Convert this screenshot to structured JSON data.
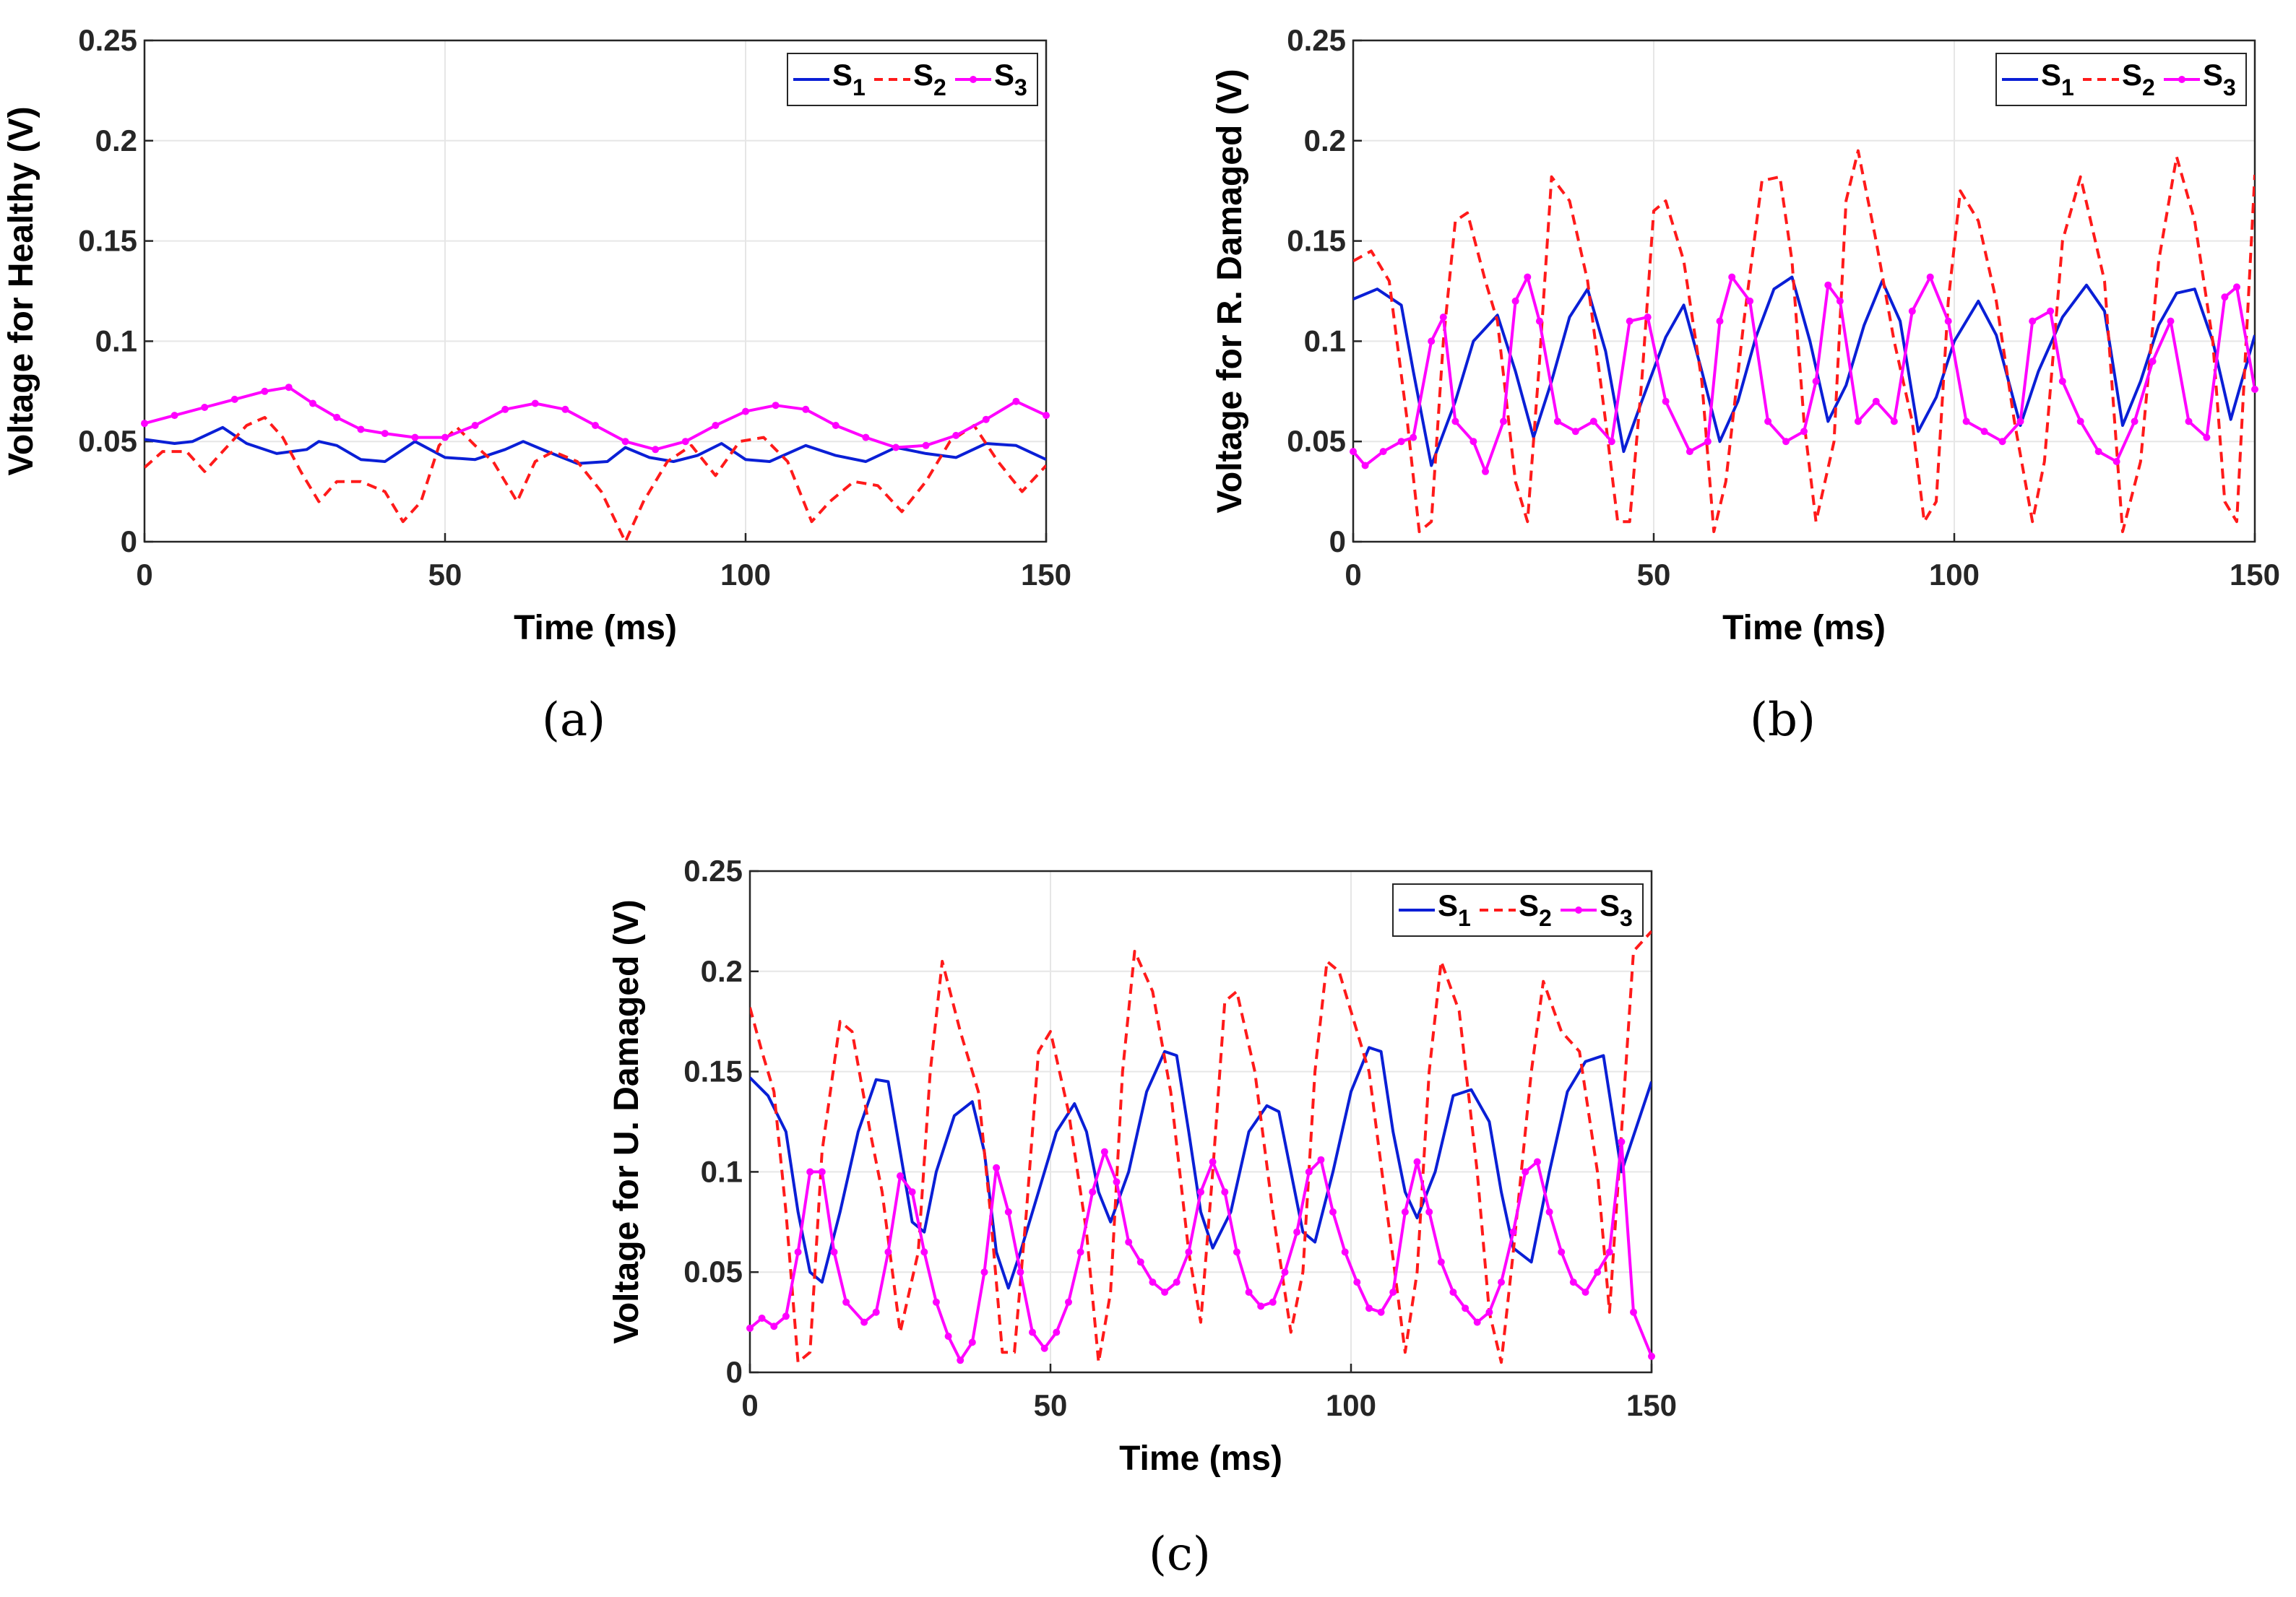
{
  "figure": {
    "captions": [
      "(a)",
      "(b)",
      "(c)"
    ]
  },
  "colors": {
    "s1": "#0a1fd6",
    "s2": "#ff1a1a",
    "s3": "#ff00ff"
  },
  "chart_data": [
    {
      "type": "line",
      "xlabel": "Time (ms)",
      "ylabel": "Voltage for Healthy (V)",
      "xlim": [
        0,
        150
      ],
      "ylim": [
        0,
        0.25
      ],
      "xticks": [
        0,
        50,
        100,
        150
      ],
      "yticks": [
        0,
        0.05,
        0.1,
        0.15,
        0.2,
        0.25
      ],
      "ytick_labels": [
        "0",
        "0.05",
        "0.1",
        "0.15",
        "0.2",
        "0.25"
      ],
      "grid": true,
      "legend": [
        "S1",
        "S2",
        "S3"
      ],
      "legend_position": "top-right",
      "caption": "(a)",
      "series": [
        {
          "name": "S1",
          "style": "solid",
          "x": [
            0,
            5,
            8,
            13,
            17,
            22,
            27,
            29,
            32,
            36,
            40,
            45,
            50,
            55,
            60,
            63,
            67,
            72,
            77,
            80,
            84,
            88,
            92,
            96,
            100,
            104,
            110,
            115,
            120,
            125,
            130,
            135,
            140,
            145,
            150
          ],
          "values": [
            0.051,
            0.049,
            0.05,
            0.057,
            0.049,
            0.044,
            0.046,
            0.05,
            0.048,
            0.041,
            0.04,
            0.05,
            0.042,
            0.041,
            0.046,
            0.05,
            0.045,
            0.039,
            0.04,
            0.047,
            0.042,
            0.04,
            0.043,
            0.049,
            0.041,
            0.04,
            0.048,
            0.043,
            0.04,
            0.047,
            0.044,
            0.042,
            0.049,
            0.048,
            0.041
          ]
        },
        {
          "name": "S2",
          "style": "dashed",
          "x": [
            0,
            3,
            7,
            10,
            13,
            17,
            20,
            23,
            26,
            29,
            32,
            36,
            40,
            43,
            46,
            49,
            52,
            55,
            58,
            62,
            65,
            68,
            72,
            76,
            80,
            83,
            87,
            91,
            95,
            99,
            103,
            107,
            111,
            114,
            118,
            122,
            126,
            130,
            134,
            138,
            142,
            146,
            150
          ],
          "values": [
            0.037,
            0.045,
            0.045,
            0.035,
            0.045,
            0.058,
            0.062,
            0.052,
            0.035,
            0.02,
            0.03,
            0.03,
            0.025,
            0.01,
            0.02,
            0.048,
            0.057,
            0.048,
            0.04,
            0.02,
            0.04,
            0.045,
            0.04,
            0.025,
            0.0,
            0.02,
            0.04,
            0.048,
            0.033,
            0.05,
            0.052,
            0.04,
            0.01,
            0.02,
            0.03,
            0.028,
            0.015,
            0.03,
            0.05,
            0.058,
            0.04,
            0.025,
            0.038
          ]
        },
        {
          "name": "S3",
          "style": "marker-line",
          "x": [
            0,
            5,
            10,
            15,
            20,
            24,
            28,
            32,
            36,
            40,
            45,
            50,
            55,
            60,
            65,
            70,
            75,
            80,
            85,
            90,
            95,
            100,
            105,
            110,
            115,
            120,
            125,
            130,
            135,
            140,
            145,
            150
          ],
          "values": [
            0.059,
            0.063,
            0.067,
            0.071,
            0.075,
            0.077,
            0.069,
            0.062,
            0.056,
            0.054,
            0.052,
            0.052,
            0.058,
            0.066,
            0.069,
            0.066,
            0.058,
            0.05,
            0.046,
            0.05,
            0.058,
            0.065,
            0.068,
            0.066,
            0.058,
            0.052,
            0.047,
            0.048,
            0.053,
            0.061,
            0.07,
            0.063
          ]
        }
      ]
    },
    {
      "type": "line",
      "xlabel": "Time (ms)",
      "ylabel": "Voltage for R. Damaged (V)",
      "xlim": [
        0,
        150
      ],
      "ylim": [
        0,
        0.25
      ],
      "xticks": [
        0,
        50,
        100,
        150
      ],
      "yticks": [
        0,
        0.05,
        0.1,
        0.15,
        0.2,
        0.25
      ],
      "ytick_labels": [
        "0",
        "0.05",
        "0.1",
        "0.15",
        "0.2",
        "0.25"
      ],
      "grid": true,
      "legend": [
        "S1",
        "S2",
        "S3"
      ],
      "legend_position": "top-right",
      "caption": "(b)",
      "series": [
        {
          "name": "S1",
          "style": "solid",
          "x": [
            0,
            4,
            8,
            10,
            13,
            17,
            20,
            24,
            27,
            30,
            33,
            36,
            39,
            42,
            45,
            48,
            52,
            55,
            58,
            61,
            64,
            67,
            70,
            73,
            76,
            79,
            82,
            85,
            88,
            91,
            94,
            97,
            100,
            104,
            107,
            111,
            114,
            118,
            122,
            125,
            128,
            131,
            134,
            137,
            140,
            143,
            146,
            150
          ],
          "values": [
            0.121,
            0.126,
            0.118,
            0.085,
            0.038,
            0.07,
            0.1,
            0.113,
            0.085,
            0.052,
            0.08,
            0.112,
            0.126,
            0.095,
            0.045,
            0.07,
            0.102,
            0.118,
            0.085,
            0.05,
            0.07,
            0.102,
            0.126,
            0.132,
            0.1,
            0.06,
            0.078,
            0.108,
            0.13,
            0.11,
            0.055,
            0.072,
            0.1,
            0.12,
            0.103,
            0.058,
            0.085,
            0.112,
            0.128,
            0.115,
            0.058,
            0.08,
            0.108,
            0.124,
            0.126,
            0.1,
            0.061,
            0.103
          ]
        },
        {
          "name": "S2",
          "style": "dashed",
          "x": [
            0,
            3,
            6,
            9,
            11,
            13,
            15,
            17,
            19,
            22,
            24,
            27,
            29,
            31,
            33,
            36,
            39,
            42,
            44,
            46,
            48,
            50,
            52,
            55,
            58,
            60,
            62,
            65,
            68,
            71,
            73,
            75,
            77,
            80,
            82,
            84,
            87,
            90,
            93,
            95,
            97,
            99,
            101,
            104,
            107,
            110,
            113,
            115,
            118,
            121,
            125,
            128,
            131,
            134,
            137,
            140,
            143,
            145,
            147,
            150
          ],
          "values": [
            0.14,
            0.145,
            0.13,
            0.06,
            0.005,
            0.01,
            0.1,
            0.16,
            0.164,
            0.13,
            0.11,
            0.03,
            0.01,
            0.09,
            0.182,
            0.17,
            0.13,
            0.06,
            0.01,
            0.01,
            0.08,
            0.165,
            0.17,
            0.14,
            0.08,
            0.005,
            0.03,
            0.11,
            0.18,
            0.182,
            0.14,
            0.06,
            0.01,
            0.05,
            0.17,
            0.195,
            0.15,
            0.1,
            0.06,
            0.01,
            0.02,
            0.12,
            0.175,
            0.16,
            0.12,
            0.06,
            0.01,
            0.04,
            0.15,
            0.182,
            0.13,
            0.005,
            0.04,
            0.14,
            0.192,
            0.16,
            0.1,
            0.02,
            0.01,
            0.183
          ]
        },
        {
          "name": "S3",
          "style": "marker-line",
          "x": [
            0,
            2,
            5,
            8,
            10,
            13,
            15,
            17,
            20,
            22,
            25,
            27,
            29,
            31,
            34,
            37,
            40,
            43,
            46,
            49,
            52,
            56,
            59,
            61,
            63,
            66,
            69,
            72,
            75,
            77,
            79,
            81,
            84,
            87,
            90,
            93,
            96,
            99,
            102,
            105,
            108,
            111,
            113,
            116,
            118,
            121,
            124,
            127,
            130,
            133,
            136,
            139,
            142,
            145,
            147,
            150
          ],
          "values": [
            0.045,
            0.038,
            0.045,
            0.05,
            0.052,
            0.1,
            0.112,
            0.06,
            0.05,
            0.035,
            0.06,
            0.12,
            0.132,
            0.11,
            0.06,
            0.055,
            0.06,
            0.05,
            0.11,
            0.112,
            0.07,
            0.045,
            0.05,
            0.11,
            0.132,
            0.12,
            0.06,
            0.05,
            0.055,
            0.08,
            0.128,
            0.12,
            0.06,
            0.07,
            0.06,
            0.115,
            0.132,
            0.11,
            0.06,
            0.055,
            0.05,
            0.06,
            0.11,
            0.115,
            0.08,
            0.06,
            0.045,
            0.04,
            0.06,
            0.09,
            0.11,
            0.06,
            0.052,
            0.122,
            0.127,
            0.076
          ]
        }
      ]
    },
    {
      "type": "line",
      "xlabel": "Time (ms)",
      "ylabel": "Voltage for U. Damaged (V)",
      "xlim": [
        0,
        150
      ],
      "ylim": [
        0,
        0.25
      ],
      "xticks": [
        0,
        50,
        100,
        150
      ],
      "yticks": [
        0,
        0.05,
        0.1,
        0.15,
        0.2,
        0.25
      ],
      "ytick_labels": [
        "0",
        "0.05",
        "0.1",
        "0.15",
        "0.2",
        "0.25"
      ],
      "grid": true,
      "legend": [
        "S1",
        "S2",
        "S3"
      ],
      "legend_position": "top-right",
      "caption": "(c)",
      "series": [
        {
          "name": "S1",
          "style": "solid",
          "x": [
            0,
            3,
            6,
            8,
            10,
            12,
            15,
            18,
            21,
            23,
            25,
            27,
            29,
            31,
            34,
            37,
            39,
            41,
            43,
            45,
            48,
            51,
            54,
            56,
            58,
            60,
            63,
            66,
            69,
            71,
            73,
            75,
            77,
            80,
            83,
            86,
            88,
            90,
            92,
            94,
            97,
            100,
            103,
            105,
            107,
            109,
            111,
            114,
            117,
            120,
            123,
            125,
            127,
            130,
            133,
            136,
            139,
            142,
            145,
            150
          ],
          "values": [
            0.147,
            0.138,
            0.12,
            0.08,
            0.05,
            0.045,
            0.08,
            0.12,
            0.146,
            0.145,
            0.11,
            0.075,
            0.07,
            0.1,
            0.128,
            0.135,
            0.11,
            0.06,
            0.042,
            0.06,
            0.09,
            0.12,
            0.134,
            0.12,
            0.09,
            0.075,
            0.1,
            0.14,
            0.16,
            0.158,
            0.12,
            0.08,
            0.062,
            0.08,
            0.12,
            0.133,
            0.13,
            0.1,
            0.07,
            0.065,
            0.1,
            0.14,
            0.162,
            0.16,
            0.12,
            0.09,
            0.077,
            0.1,
            0.138,
            0.141,
            0.125,
            0.09,
            0.062,
            0.055,
            0.1,
            0.14,
            0.155,
            0.158,
            0.1,
            0.145
          ]
        },
        {
          "name": "S2",
          "style": "dashed",
          "x": [
            0,
            2,
            4,
            6,
            8,
            10,
            12,
            15,
            17,
            20,
            22,
            25,
            28,
            30,
            32,
            35,
            38,
            40,
            42,
            44,
            46,
            48,
            50,
            53,
            56,
            58,
            60,
            62,
            64,
            67,
            70,
            73,
            75,
            77,
            79,
            81,
            84,
            87,
            90,
            92,
            94,
            96,
            98,
            100,
            103,
            106,
            109,
            111,
            113,
            115,
            118,
            121,
            123,
            125,
            127,
            130,
            132,
            135,
            138,
            141,
            143,
            145,
            147,
            150
          ],
          "values": [
            0.182,
            0.16,
            0.14,
            0.08,
            0.005,
            0.01,
            0.11,
            0.175,
            0.17,
            0.12,
            0.09,
            0.02,
            0.06,
            0.15,
            0.205,
            0.17,
            0.14,
            0.08,
            0.01,
            0.01,
            0.08,
            0.16,
            0.17,
            0.13,
            0.07,
            0.005,
            0.04,
            0.15,
            0.21,
            0.19,
            0.14,
            0.06,
            0.025,
            0.1,
            0.185,
            0.19,
            0.15,
            0.08,
            0.02,
            0.05,
            0.15,
            0.205,
            0.2,
            0.18,
            0.15,
            0.08,
            0.01,
            0.05,
            0.15,
            0.205,
            0.18,
            0.1,
            0.03,
            0.005,
            0.06,
            0.15,
            0.195,
            0.17,
            0.16,
            0.1,
            0.03,
            0.12,
            0.21,
            0.22
          ]
        },
        {
          "name": "S3",
          "style": "marker-line",
          "x": [
            0,
            2,
            4,
            6,
            8,
            10,
            12,
            14,
            16,
            19,
            21,
            23,
            25,
            27,
            29,
            31,
            33,
            35,
            37,
            39,
            41,
            43,
            45,
            47,
            49,
            51,
            53,
            55,
            57,
            59,
            61,
            63,
            65,
            67,
            69,
            71,
            73,
            75,
            77,
            79,
            81,
            83,
            85,
            87,
            89,
            91,
            93,
            95,
            97,
            99,
            101,
            103,
            105,
            107,
            109,
            111,
            113,
            115,
            117,
            119,
            121,
            123,
            125,
            127,
            129,
            131,
            133,
            135,
            137,
            139,
            141,
            143,
            145,
            147,
            150
          ],
          "values": [
            0.022,
            0.027,
            0.023,
            0.028,
            0.06,
            0.1,
            0.1,
            0.06,
            0.035,
            0.025,
            0.03,
            0.06,
            0.098,
            0.09,
            0.06,
            0.035,
            0.018,
            0.006,
            0.015,
            0.05,
            0.102,
            0.08,
            0.05,
            0.02,
            0.012,
            0.02,
            0.035,
            0.06,
            0.09,
            0.11,
            0.095,
            0.065,
            0.055,
            0.045,
            0.04,
            0.045,
            0.06,
            0.09,
            0.105,
            0.09,
            0.06,
            0.04,
            0.033,
            0.035,
            0.05,
            0.07,
            0.1,
            0.106,
            0.08,
            0.06,
            0.045,
            0.032,
            0.03,
            0.04,
            0.08,
            0.105,
            0.08,
            0.055,
            0.04,
            0.032,
            0.025,
            0.03,
            0.045,
            0.07,
            0.1,
            0.105,
            0.08,
            0.06,
            0.045,
            0.04,
            0.05,
            0.06,
            0.115,
            0.03,
            0.008
          ]
        }
      ]
    }
  ]
}
